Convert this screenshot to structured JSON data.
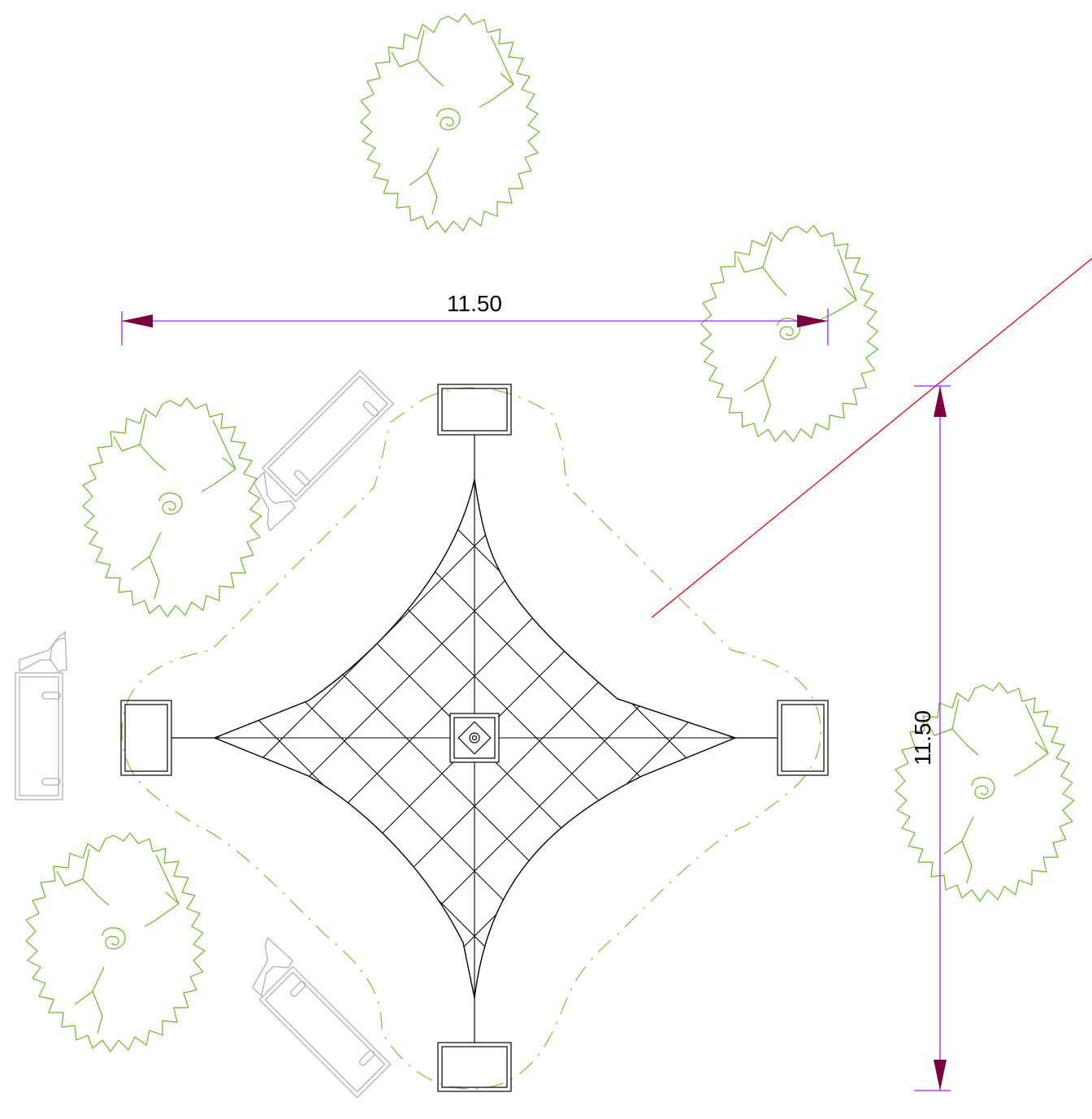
{
  "dimensions": {
    "horizontal": {
      "label": "11.50"
    },
    "vertical": {
      "label": "11.50"
    }
  },
  "colors": {
    "tree": "#6cb52c",
    "dimension_line": "#a020f0",
    "dimension_arrow": "#7a0040",
    "structure": "#000000",
    "bench": "#b0b0b0",
    "guide_line": "#e0001b",
    "canopy_outline": "#8cb83c"
  }
}
